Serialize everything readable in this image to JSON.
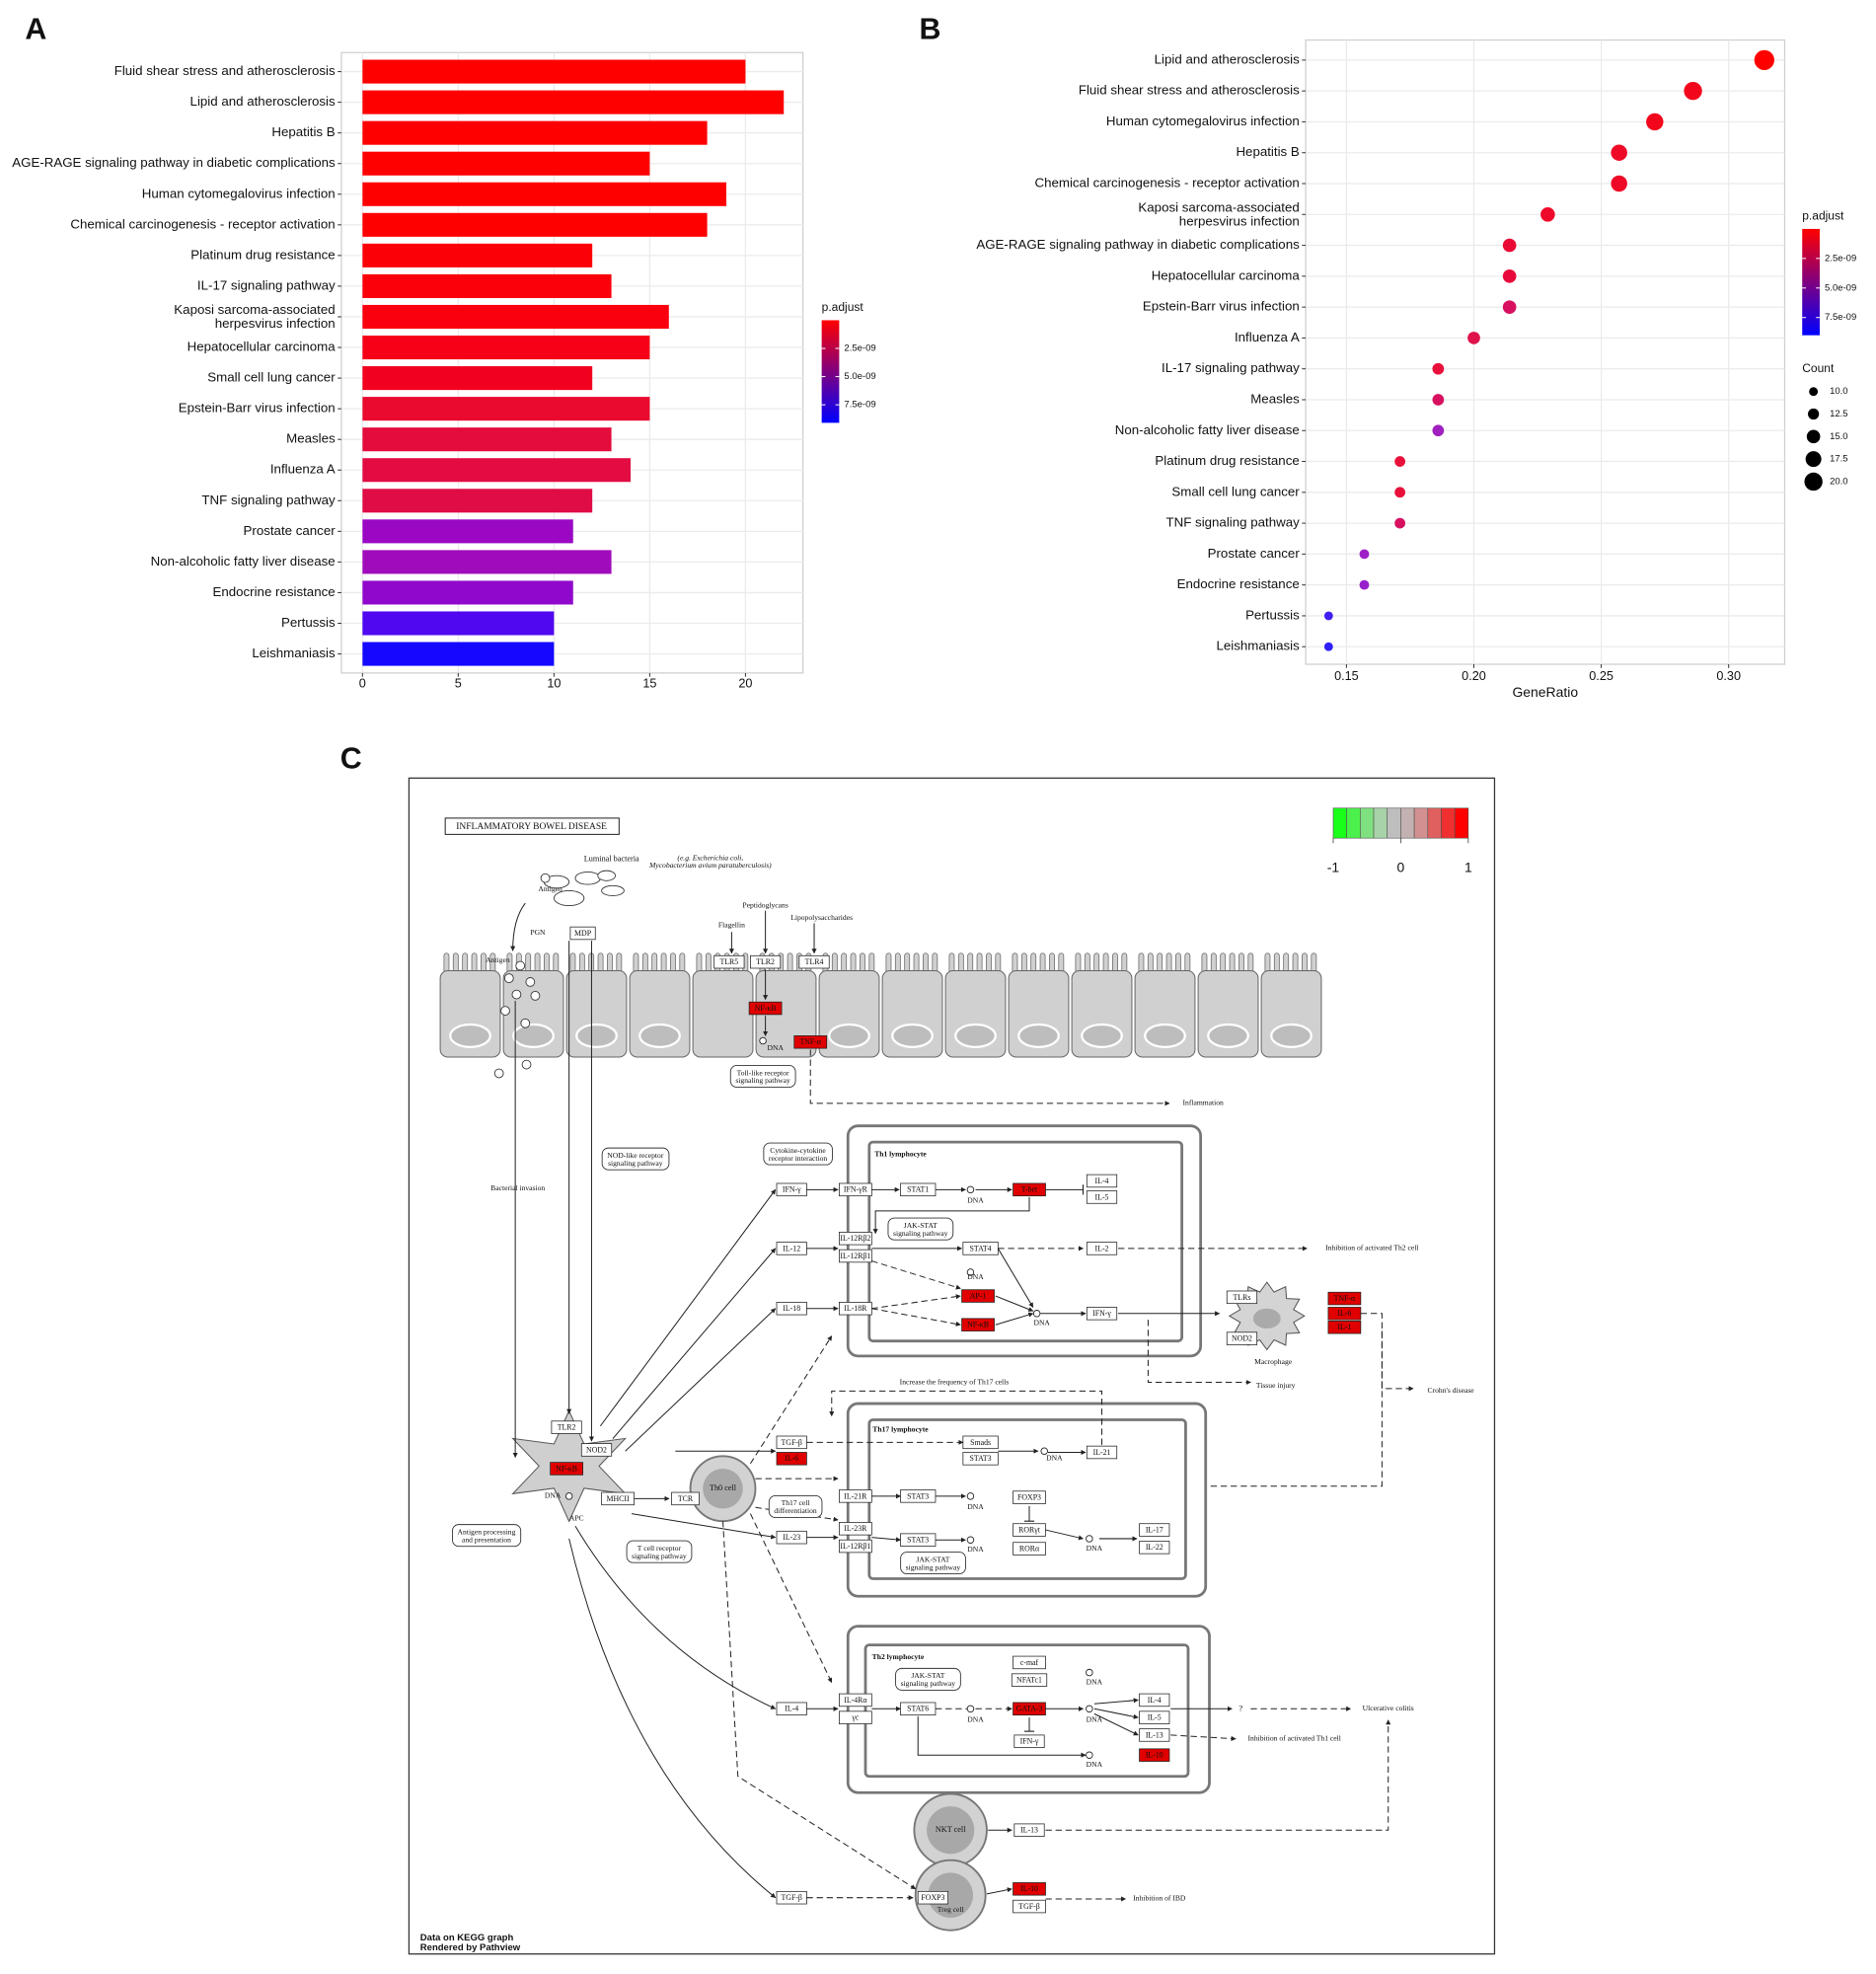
{
  "panel_labels": [
    "A",
    "B",
    "C"
  ],
  "chart_data": [
    {
      "type": "bar",
      "categories": [
        "Fluid shear stress and atherosclerosis",
        "Lipid and atherosclerosis",
        "Hepatitis B",
        "AGE-RAGE signaling pathway in diabetic complications",
        "Human cytomegalovirus infection",
        "Chemical carcinogenesis - receptor activation",
        "Platinum drug resistance",
        "IL-17 signaling pathway",
        "Kaposi sarcoma-associated\nherpesvirus infection",
        "Hepatocellular carcinoma",
        "Small cell lung cancer",
        "Epstein-Barr virus infection",
        "Measles",
        "Influenza A",
        "TNF signaling pathway",
        "Prostate cancer",
        "Non-alcoholic fatty liver disease",
        "Endocrine resistance",
        "Pertussis",
        "Leishmaniasis"
      ],
      "values": [
        20,
        22,
        18,
        15,
        19,
        18,
        12,
        13,
        16,
        15,
        12,
        15,
        13,
        14,
        12,
        11,
        13,
        11,
        10,
        10
      ],
      "colors": [
        "#ff0000",
        "#ff0000",
        "#ff0000",
        "#ff0000",
        "#ff0000",
        "#ff0000",
        "#fc0008",
        "#fb000a",
        "#fa000e",
        "#f60018",
        "#f2001f",
        "#ea0a30",
        "#e40c3c",
        "#e20c42",
        "#e00c46",
        "#9a08c4",
        "#a00cbc",
        "#9008cc",
        "#5008f0",
        "#1408ff"
      ],
      "xlim": [
        -1.1,
        23
      ],
      "xticks": [
        0,
        5,
        10,
        15,
        20
      ],
      "grid": true,
      "legend": {
        "title": "p.adjust",
        "lim": [
          0,
          9.1e-09
        ],
        "low_color": "#ff0000",
        "high_color": "#0000ff",
        "ticks": [
          {
            "value": 2.5e-09,
            "label": "2.5e-09"
          },
          {
            "value": 5e-09,
            "label": "5.0e-09"
          },
          {
            "value": 7.5e-09,
            "label": "7.5e-09"
          }
        ]
      }
    },
    {
      "type": "scatter",
      "categories": [
        "Lipid and atherosclerosis",
        "Fluid shear stress and atherosclerosis",
        "Human cytomegalovirus infection",
        "Hepatitis B",
        "Chemical carcinogenesis - receptor activation",
        "Kaposi sarcoma-associated\nherpesvirus infection",
        "AGE-RAGE signaling pathway in diabetic complications",
        "Hepatocellular carcinoma",
        "Epstein-Barr virus infection",
        "Influenza A",
        "IL-17 signaling pathway",
        "Measles",
        "Non-alcoholic fatty liver disease",
        "Platinum drug resistance",
        "Small cell lung cancer",
        "TNF signaling pathway",
        "Prostate cancer",
        "Endocrine resistance",
        "Pertussis",
        "Leishmaniasis"
      ],
      "values": [
        0.314,
        0.286,
        0.271,
        0.257,
        0.257,
        0.229,
        0.214,
        0.214,
        0.214,
        0.2,
        0.186,
        0.186,
        0.186,
        0.171,
        0.171,
        0.171,
        0.157,
        0.157,
        0.143,
        0.143
      ],
      "sizes": [
        22,
        20,
        19,
        18,
        18,
        16,
        15,
        15,
        15,
        14,
        13,
        13,
        13,
        12,
        12,
        12,
        11,
        11,
        10,
        10
      ],
      "colors": [
        "#ff0000",
        "#f2061c",
        "#f2061c",
        "#ee0a26",
        "#ee0a26",
        "#ee0a2a",
        "#e80a35",
        "#e80a3a",
        "#d81060",
        "#e0104a",
        "#e8103a",
        "#d81060",
        "#a020c0",
        "#e8103a",
        "#e8103a",
        "#d81060",
        "#a020c8",
        "#9820cc",
        "#4020f0",
        "#3020f8"
      ],
      "xlabel": "GeneRatio",
      "xlim": [
        0.134,
        0.322
      ],
      "xticks": [
        0.15,
        {
          "value": 0.2,
          "label": "0.20"
        },
        0.25,
        {
          "value": 0.3,
          "label": "0.30"
        }
      ],
      "grid": true,
      "legend": {
        "title": "p.adjust",
        "lim": [
          0,
          9e-09
        ],
        "low_color": "#ff0000",
        "high_color": "#0000ff",
        "ticks": [
          {
            "value": 2.5e-09,
            "label": "2.5e-09"
          },
          {
            "value": 5e-09,
            "label": "5.0e-09"
          },
          {
            "value": 7.5e-09,
            "label": "7.5e-09"
          }
        ]
      },
      "size_legend": {
        "title": "Count",
        "ticks": [
          {
            "value": 10,
            "label": "10.0"
          },
          {
            "value": 12.5,
            "label": "12.5"
          },
          {
            "value": 15,
            "label": "15.0"
          },
          {
            "value": 17.5,
            "label": "17.5"
          },
          {
            "value": 20,
            "label": "20.0"
          }
        ]
      }
    }
  ],
  "diagram": {
    "title": "INFLAMMATORY BOWEL DISEASE",
    "legend_ticks": [
      -1,
      0,
      1
    ],
    "legend_colors": [
      "#19ff19",
      "#4cf04c",
      "#7fe07f",
      "#a8d3a8",
      "#bebebe",
      "#c4b2b2",
      "#d39090",
      "#e06060",
      "#f03030",
      "#ff0000"
    ],
    "genes": [
      {
        "label": "MDP",
        "color": "#ffffff"
      },
      {
        "label": "TLR5",
        "color": "#ffffff"
      },
      {
        "label": "TLR2",
        "color": "#ffffff"
      },
      {
        "label": "TLR4",
        "color": "#ffffff"
      },
      {
        "label": "NF-κB",
        "color": "#e00000"
      },
      {
        "label": "TNF-α",
        "color": "#e00000"
      },
      {
        "label": "IFN-γ",
        "color": "#ffffff"
      },
      {
        "label": "IFN-γR",
        "color": "#ffffff"
      },
      {
        "label": "STAT1",
        "color": "#ffffff"
      },
      {
        "label": "T-bet",
        "color": "#e00000"
      },
      {
        "label": "IL-4",
        "color": "#ffffff"
      },
      {
        "label": "IL-5",
        "color": "#ffffff"
      },
      {
        "label": "IL-12",
        "color": "#ffffff"
      },
      {
        "label": "IL-12Rβ2",
        "color": "#ffffff"
      },
      {
        "label": "IL-12Rβ1",
        "color": "#ffffff"
      },
      {
        "label": "STAT4",
        "color": "#ffffff"
      },
      {
        "label": "IL-2",
        "color": "#ffffff"
      },
      {
        "label": "AP-1",
        "color": "#e00000"
      },
      {
        "label": "NF-κB",
        "color": "#e00000"
      },
      {
        "label": "IL-18",
        "color": "#ffffff"
      },
      {
        "label": "IL-18R",
        "color": "#ffffff"
      },
      {
        "label": "IFN-γ",
        "color": "#ffffff"
      },
      {
        "label": "TLRs",
        "color": "#ffffff"
      },
      {
        "label": "NOD2",
        "color": "#ffffff"
      },
      {
        "label": "TNF-α",
        "color": "#e00000"
      },
      {
        "label": "IL-6",
        "color": "#e00000"
      },
      {
        "label": "IL-1",
        "color": "#e00000"
      },
      {
        "label": "TGF-β",
        "color": "#ffffff"
      },
      {
        "label": "IL-6",
        "color": "#e00000"
      },
      {
        "label": "Smads",
        "color": "#ffffff"
      },
      {
        "label": "STAT3",
        "color": "#ffffff"
      },
      {
        "label": "IL-21",
        "color": "#ffffff"
      },
      {
        "label": "IL-21R",
        "color": "#ffffff"
      },
      {
        "label": "STAT3",
        "color": "#ffffff"
      },
      {
        "label": "FOXP3",
        "color": "#ffffff"
      },
      {
        "label": "RORγt",
        "color": "#ffffff"
      },
      {
        "label": "RORα",
        "color": "#ffffff"
      },
      {
        "label": "IL-17",
        "color": "#ffffff"
      },
      {
        "label": "IL-22",
        "color": "#ffffff"
      },
      {
        "label": "IL-23",
        "color": "#ffffff"
      },
      {
        "label": "IL-23R",
        "color": "#ffffff"
      },
      {
        "label": "IL-12Rβ1",
        "color": "#ffffff"
      },
      {
        "label": "STAT3",
        "color": "#ffffff"
      },
      {
        "label": "TLR2",
        "color": "#ffffff"
      },
      {
        "label": "NOD2",
        "color": "#ffffff"
      },
      {
        "label": "NF-κB",
        "color": "#e00000"
      },
      {
        "label": "MHCII",
        "color": "#ffffff"
      },
      {
        "label": "TCR",
        "color": "#ffffff"
      },
      {
        "label": "c-maf",
        "color": "#ffffff"
      },
      {
        "label": "NFATc1",
        "color": "#ffffff"
      },
      {
        "label": "GATA-3",
        "color": "#e00000"
      },
      {
        "label": "IFN-γ",
        "color": "#ffffff"
      },
      {
        "label": "IL-4",
        "color": "#ffffff"
      },
      {
        "label": "IL-5",
        "color": "#ffffff"
      },
      {
        "label": "IL-13",
        "color": "#ffffff"
      },
      {
        "label": "IL-10",
        "color": "#e00000"
      },
      {
        "label": "IL-4",
        "color": "#ffffff"
      },
      {
        "label": "IL-4Rα",
        "color": "#ffffff"
      },
      {
        "label": "γc",
        "color": "#ffffff"
      },
      {
        "label": "STAT6",
        "color": "#ffffff"
      },
      {
        "label": "IL-13",
        "color": "#ffffff"
      },
      {
        "label": "IL-10",
        "color": "#e00000"
      },
      {
        "label": "TGF-β",
        "color": "#ffffff"
      },
      {
        "label": "TGF-β",
        "color": "#ffffff"
      },
      {
        "label": "FOXP3",
        "color": "#ffffff"
      }
    ],
    "labels": [
      "Luminal bacteria",
      "(e.g. Escherichia coli,\nMycobacterium avium paratuberculosis)",
      "Antigen",
      "PGN",
      "Antigen",
      "Peptidoglycans",
      "Flagellin",
      "Lipopolysaccharides",
      "DNA",
      "Toll-like receptor\nsignaling pathway",
      "Inflammation",
      "Bacterial invasion",
      "NOD-like receptor\nsignaling pathway",
      "Cytokine-cytokine\nreceptor interaction",
      "Th1 lymphocyte",
      "DNA",
      "JAK-STAT\nsignaling pathway",
      "DNA",
      "DNA",
      "Inhibition of activated Th2 cell",
      "Macrophage",
      "Crohn's disease",
      "Tissue injury",
      "Increase the frequency of Th17 cells",
      "Th17 lymphocyte",
      "DNA",
      "Th0 cell",
      "Th17 cell\ndifferentiation",
      "DNA",
      "DNA",
      "DNA",
      "JAK-STAT\nsignaling pathway",
      "DNA",
      "APC",
      "Antigen processing\nand presentation",
      "T cell receptor\nsignaling pathway",
      "Th2 lymphocyte",
      "JAK-STAT\nsignaling pathway",
      "DNA",
      "DNA",
      "DNA",
      "DNA",
      "?",
      "Ulcerative colitis",
      "Inhibition of activated Th1 cell",
      "NKT cell",
      "Treg cell",
      "Inhibition of IBD"
    ],
    "footer": [
      "Data on KEGG graph",
      "Rendered by Pathview"
    ]
  }
}
